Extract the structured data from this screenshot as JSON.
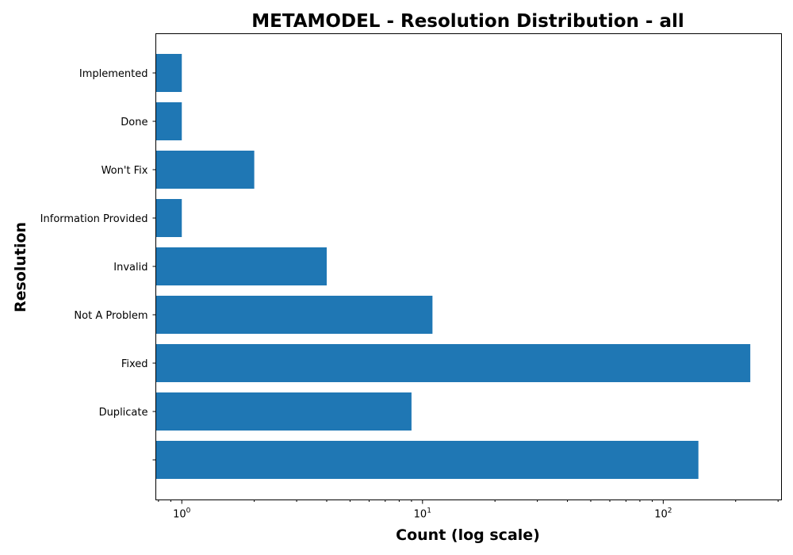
{
  "chart_data": {
    "type": "bar",
    "orientation": "horizontal",
    "title": "METAMODEL - Resolution Distribution - all",
    "xlabel": "Count (log scale)",
    "ylabel": "Resolution",
    "x_scale": "log",
    "xlim": [
      0.78,
      310
    ],
    "x_ticks": [
      {
        "value": 1,
        "base": "10",
        "exp": "0"
      },
      {
        "value": 10,
        "base": "10",
        "exp": "1"
      },
      {
        "value": 100,
        "base": "10",
        "exp": "2"
      }
    ],
    "categories": [
      "",
      "Duplicate",
      "Fixed",
      "Not A Problem",
      "Invalid",
      "Information Provided",
      "Won't Fix",
      "Done",
      "Implemented"
    ],
    "values": [
      140,
      9,
      230,
      11,
      4,
      1,
      2,
      1,
      1
    ],
    "bar_color": "#1f77b4",
    "grid": false,
    "legend": "none"
  }
}
